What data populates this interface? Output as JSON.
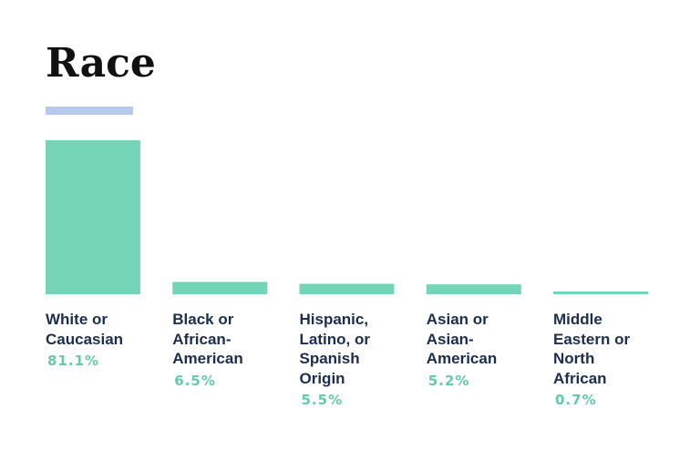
{
  "title": "Race",
  "colors": {
    "bar": "#74d4b8",
    "accent": "#b6c9ec",
    "label": "#1c2d4e",
    "value": "#65c9aa",
    "title": "#111111"
  },
  "chart_data": {
    "type": "bar",
    "title": "Race",
    "categories": [
      [
        "White or",
        "Caucasian"
      ],
      [
        "Black or",
        "African-",
        "American"
      ],
      [
        "Hispanic,",
        "Latino, or",
        "Spanish",
        "Origin"
      ],
      [
        "Asian or",
        "Asian-",
        "American"
      ],
      [
        "Middle",
        "Eastern or",
        "North",
        "African"
      ]
    ],
    "values": [
      81.1,
      6.5,
      5.5,
      5.2,
      0.7
    ],
    "value_labels": [
      "81.1%",
      "6.5%",
      "5.5%",
      "5.2%",
      "0.7%"
    ],
    "xlabel": "",
    "ylabel": "",
    "ylim": [
      0,
      81.1
    ],
    "grid": false
  }
}
